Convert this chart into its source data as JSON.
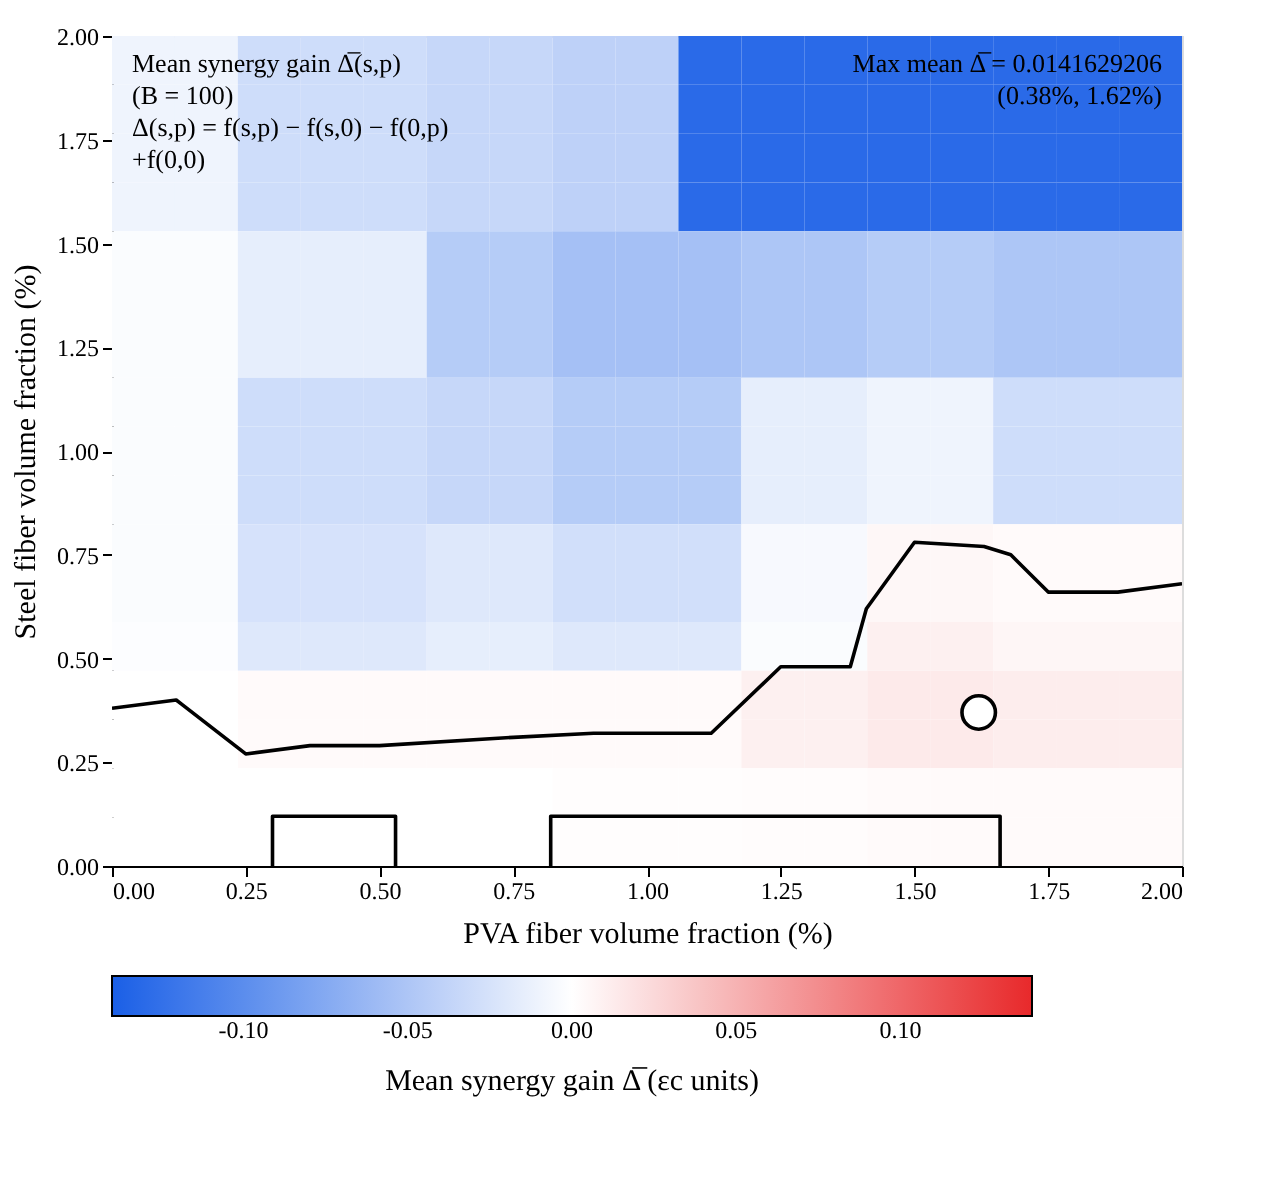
{
  "chart_data": {
    "type": "heatmap",
    "xlabel": "PVA fiber volume fraction (%)",
    "ylabel": "Steel fiber volume fraction (%)",
    "clabel": "Mean synergy gain Δ̅ (εc units)",
    "x": [
      0.0588,
      0.1765,
      0.2941,
      0.4118,
      0.5294,
      0.6471,
      0.7647,
      0.8824,
      1.0,
      1.1176,
      1.2353,
      1.3529,
      1.4706,
      1.5882,
      1.7059,
      1.8235,
      1.9412
    ],
    "y": [
      1.9412,
      1.8235,
      1.7059,
      1.5882,
      1.4706,
      1.3529,
      1.2353,
      1.1176,
      1.0,
      0.8824,
      0.7647,
      0.6471,
      0.5294,
      0.4118,
      0.2941,
      0.1765,
      0.0588
    ],
    "cells": [
      [
        -0.01,
        -0.01,
        -0.03,
        -0.03,
        -0.03,
        -0.035,
        -0.035,
        -0.04,
        -0.04,
        -0.13,
        -0.13,
        -0.13,
        -0.13,
        -0.13,
        -0.13,
        -0.13,
        -0.13
      ],
      [
        -0.01,
        -0.01,
        -0.03,
        -0.03,
        -0.03,
        -0.035,
        -0.035,
        -0.04,
        -0.04,
        -0.13,
        -0.13,
        -0.13,
        -0.13,
        -0.13,
        -0.13,
        -0.13,
        -0.13
      ],
      [
        -0.01,
        -0.01,
        -0.03,
        -0.03,
        -0.03,
        -0.035,
        -0.035,
        -0.04,
        -0.04,
        -0.13,
        -0.13,
        -0.13,
        -0.13,
        -0.13,
        -0.13,
        -0.13,
        -0.13
      ],
      [
        -0.01,
        -0.01,
        -0.03,
        -0.03,
        -0.03,
        -0.035,
        -0.035,
        -0.04,
        -0.04,
        -0.13,
        -0.13,
        -0.13,
        -0.13,
        -0.13,
        -0.13,
        -0.13,
        -0.13
      ],
      [
        -0.003,
        -0.003,
        -0.015,
        -0.015,
        -0.015,
        -0.045,
        -0.045,
        -0.055,
        -0.055,
        -0.055,
        -0.05,
        -0.05,
        -0.045,
        -0.045,
        -0.05,
        -0.05,
        -0.05
      ],
      [
        -0.003,
        -0.003,
        -0.015,
        -0.015,
        -0.015,
        -0.045,
        -0.045,
        -0.055,
        -0.055,
        -0.055,
        -0.05,
        -0.05,
        -0.045,
        -0.045,
        -0.05,
        -0.05,
        -0.05
      ],
      [
        -0.003,
        -0.003,
        -0.015,
        -0.015,
        -0.015,
        -0.045,
        -0.045,
        -0.055,
        -0.055,
        -0.055,
        -0.05,
        -0.05,
        -0.045,
        -0.045,
        -0.05,
        -0.05,
        -0.05
      ],
      [
        -0.003,
        -0.003,
        -0.03,
        -0.03,
        -0.03,
        -0.035,
        -0.035,
        -0.045,
        -0.045,
        -0.045,
        -0.015,
        -0.015,
        -0.01,
        -0.01,
        -0.03,
        -0.03,
        -0.03
      ],
      [
        -0.003,
        -0.003,
        -0.03,
        -0.03,
        -0.03,
        -0.035,
        -0.035,
        -0.045,
        -0.045,
        -0.045,
        -0.015,
        -0.015,
        -0.01,
        -0.01,
        -0.03,
        -0.03,
        -0.03
      ],
      [
        -0.003,
        -0.003,
        -0.03,
        -0.03,
        -0.03,
        -0.035,
        -0.035,
        -0.045,
        -0.045,
        -0.045,
        -0.015,
        -0.015,
        -0.01,
        -0.01,
        -0.03,
        -0.03,
        -0.03
      ],
      [
        -0.003,
        -0.003,
        -0.025,
        -0.025,
        -0.025,
        -0.02,
        -0.02,
        -0.028,
        -0.028,
        -0.028,
        -0.005,
        -0.005,
        0.005,
        0.005,
        0.003,
        0.003,
        0.003
      ],
      [
        -0.003,
        -0.003,
        -0.025,
        -0.025,
        -0.025,
        -0.02,
        -0.02,
        -0.028,
        -0.028,
        -0.028,
        -0.005,
        -0.005,
        0.005,
        0.005,
        0.003,
        0.003,
        0.003
      ],
      [
        -0.002,
        -0.002,
        -0.02,
        -0.02,
        -0.02,
        -0.015,
        -0.015,
        -0.02,
        -0.02,
        -0.02,
        -0.003,
        -0.003,
        0.01,
        0.01,
        0.006,
        0.006,
        0.006
      ],
      [
        0,
        0,
        0.003,
        0.003,
        0.003,
        0.003,
        0.003,
        0.003,
        0.003,
        0.003,
        0.01,
        0.01,
        0.014,
        0.014,
        0.012,
        0.012,
        0.012
      ],
      [
        0,
        0,
        0.003,
        0.003,
        0.003,
        0.003,
        0.003,
        0.003,
        0.003,
        0.003,
        0.01,
        0.01,
        0.014,
        0.014,
        0.012,
        0.012,
        0.012
      ],
      [
        0,
        0,
        0,
        0,
        0,
        0,
        0,
        0.001,
        0.001,
        0.001,
        0.002,
        0.002,
        0.003,
        0.003,
        0.003,
        0.003,
        0.003
      ],
      [
        0,
        0,
        0,
        0,
        0,
        0,
        0,
        0.001,
        0.001,
        0.001,
        0.002,
        0.002,
        0.003,
        0.003,
        0.003,
        0.003,
        0.003
      ]
    ],
    "colors": [
      "#1a5fe6",
      "#ffffff",
      "#e8292b"
    ],
    "clim": [
      -0.14,
      0.14
    ],
    "cticks": [
      {
        "value": -0.1,
        "label": "-0.10"
      },
      {
        "value": -0.05,
        "label": "-0.05"
      },
      {
        "value": 0,
        "label": "0.00"
      },
      {
        "value": 0.05,
        "label": "0.05"
      },
      {
        "value": 0.1,
        "label": "0.10"
      }
    ],
    "xlim": [
      0,
      2
    ],
    "ylim": [
      0,
      2
    ],
    "xticks": [
      {
        "value": 0,
        "label": "0.00"
      },
      {
        "value": 0.25,
        "label": "0.25"
      },
      {
        "value": 0.5,
        "label": "0.50"
      },
      {
        "value": 0.75,
        "label": "0.75"
      },
      {
        "value": 1,
        "label": "1.00"
      },
      {
        "value": 1.25,
        "label": "1.25"
      },
      {
        "value": 1.5,
        "label": "1.50"
      },
      {
        "value": 1.75,
        "label": "1.75"
      },
      {
        "value": 2,
        "label": "2.00"
      }
    ],
    "yticks": [
      {
        "value": 0,
        "label": "0.00"
      },
      {
        "value": 0.25,
        "label": "0.25"
      },
      {
        "value": 0.5,
        "label": "0.50"
      },
      {
        "value": 0.75,
        "label": "0.75"
      },
      {
        "value": 1,
        "label": "1.00"
      },
      {
        "value": 1.25,
        "label": "1.25"
      },
      {
        "value": 1.5,
        "label": "1.50"
      },
      {
        "value": 1.75,
        "label": "1.75"
      },
      {
        "value": 2,
        "label": "2.00"
      }
    ],
    "series": [
      {
        "type": "line",
        "color": "#000000",
        "x": [
          0,
          0.12,
          0.13,
          0.25,
          0.37,
          0.5,
          0.75,
          0.9,
          1.12,
          1.25,
          1.38,
          1.41,
          1.5,
          1.63,
          1.68,
          1.75,
          1.88,
          2.0
        ],
        "values": [
          0.38,
          0.4,
          0.39,
          0.27,
          0.29,
          0.29,
          0.31,
          0.32,
          0.32,
          0.48,
          0.48,
          0.62,
          0.78,
          0.77,
          0.75,
          0.66,
          0.66,
          0.68
        ]
      },
      {
        "type": "line",
        "color": "#000000",
        "x": [
          0.3,
          0.3,
          0.53,
          0.53
        ],
        "values": [
          0,
          0.12,
          0.12,
          0
        ]
      },
      {
        "type": "line",
        "color": "#000000",
        "x": [
          0.82,
          0.82,
          1.66,
          1.66
        ],
        "values": [
          0,
          0.12,
          0.12,
          0
        ]
      },
      {
        "type": "scatter",
        "color": "#000000",
        "marker": "circle",
        "x": [
          1.62
        ],
        "values": [
          0.37
        ]
      }
    ],
    "line_style": "solid",
    "grid": false,
    "annotations": [
      "Mean synergy gain Δ̅(s,p)\n(B = 100)\nΔ(s,p) = f(s,p) − f(s,0) − f(0,p)\n+f(0,0)",
      "Max mean Δ̅ = 0.0141629206\n(0.38%, 1.62%)"
    ]
  }
}
